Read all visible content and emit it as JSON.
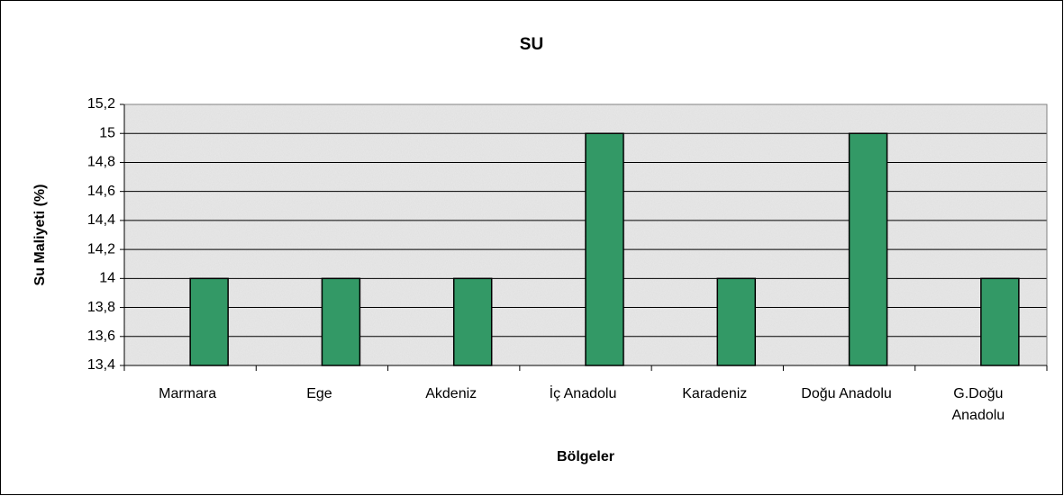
{
  "chart_data": {
    "type": "bar",
    "title": "SU",
    "y_label": "Su Maliyeti (%)",
    "x_label": "Bölgeler",
    "categories": [
      "Marmara",
      "Ege",
      "Akdeniz",
      "İç Anadolu",
      "Karadeniz",
      "Doğu Anadolu",
      "G.Doğu Anadolu"
    ],
    "values": [
      14,
      14,
      14,
      15,
      14,
      15,
      14
    ],
    "color": "#339966",
    "ylim": [
      13.4,
      15.2
    ],
    "yticks": [
      {
        "value": 13.4,
        "label": "13,4"
      },
      {
        "value": 13.6,
        "label": "13,6"
      },
      {
        "value": 13.8,
        "label": "13,8"
      },
      14,
      {
        "value": 14.2,
        "label": "14,2"
      },
      {
        "value": 14.4,
        "label": "14,4"
      },
      {
        "value": 14.6,
        "label": "14,6"
      },
      {
        "value": 14.8,
        "label": "14,8"
      },
      15,
      {
        "value": 15.2,
        "label": "15,2"
      }
    ],
    "grid": true
  }
}
